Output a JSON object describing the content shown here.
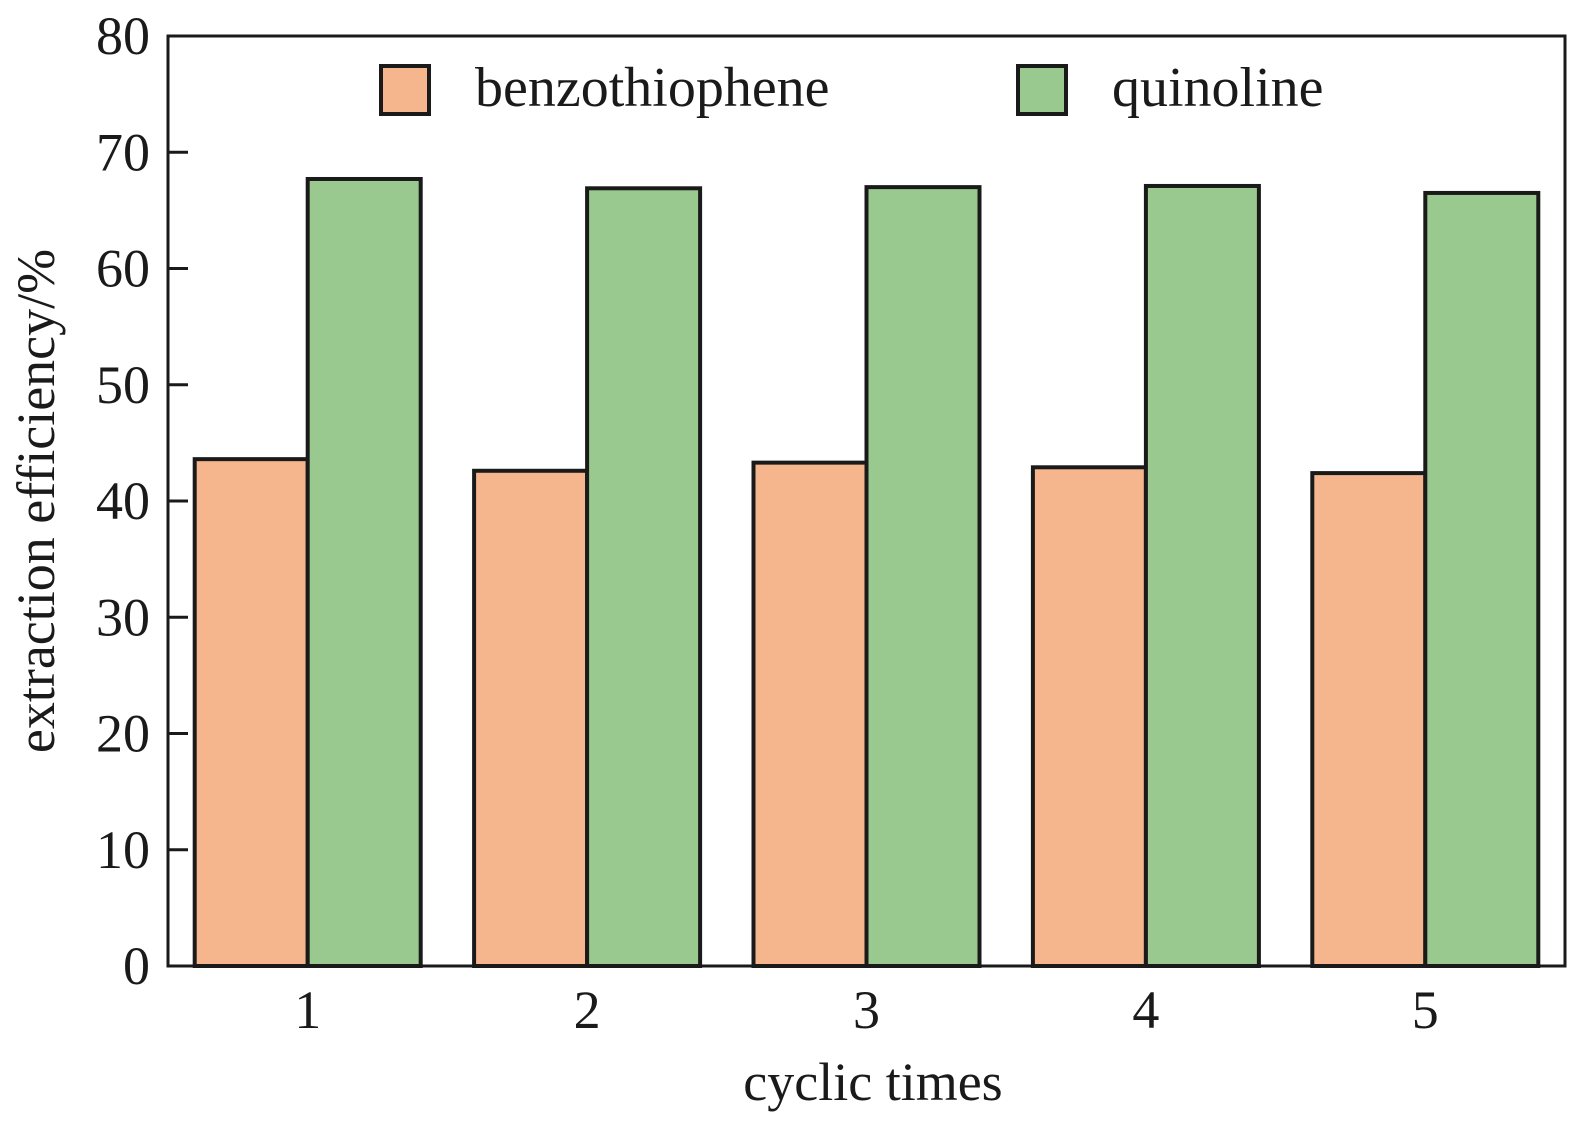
{
  "chart_data": {
    "type": "bar",
    "title": "",
    "xlabel": "cyclic times",
    "ylabel": "extraction efficiency/%",
    "ylim": [
      0,
      80
    ],
    "yticks": [
      0,
      10,
      20,
      30,
      40,
      50,
      60,
      70,
      80
    ],
    "categories": [
      "1",
      "2",
      "3",
      "4",
      "5"
    ],
    "series": [
      {
        "name": "benzothiophene",
        "color": "#f5b68e",
        "values": [
          43.6,
          42.6,
          43.3,
          42.9,
          42.4
        ]
      },
      {
        "name": "quinoline",
        "color": "#99c98f",
        "values": [
          67.7,
          66.9,
          67.0,
          67.1,
          66.5
        ]
      }
    ],
    "legend_position": "top",
    "grid": false
  }
}
